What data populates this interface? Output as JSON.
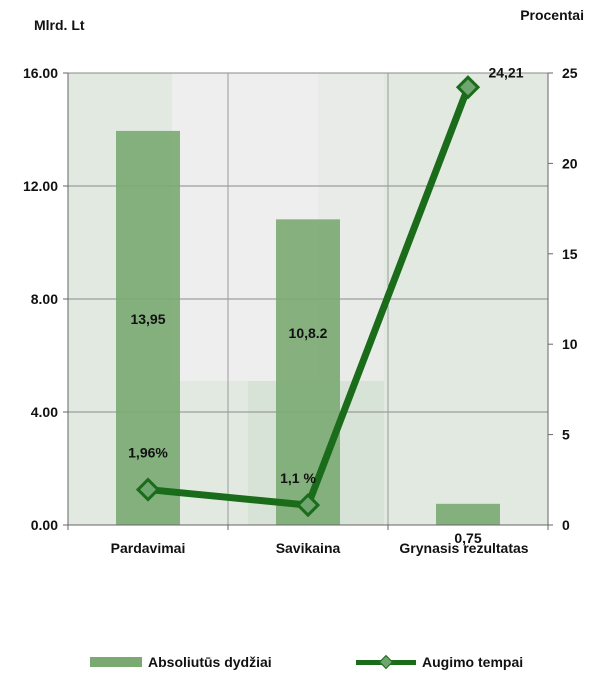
{
  "chart_data": {
    "type": "bar+line",
    "title": "",
    "left_axis_title": "Mlrd. Lt",
    "right_axis_title": "Procentai",
    "categories": [
      "Pardavimai",
      "Savikaina",
      "Grynasis rezultatas"
    ],
    "left_ylim": [
      0,
      16
    ],
    "left_ticks": [
      "0.00",
      "4.00",
      "8.00",
      "12.00",
      "16.00"
    ],
    "right_ylim": [
      0,
      25
    ],
    "right_ticks": [
      "0",
      "5",
      "10",
      "15",
      "20",
      "25"
    ],
    "series": [
      {
        "name": "Absoliutūs dydžiai",
        "type": "bar",
        "axis": "left",
        "values": [
          13.95,
          10.82,
          0.75
        ],
        "labels": [
          "13,95",
          "10,8.2",
          "0,75"
        ],
        "color": "#7aaa72"
      },
      {
        "name": "Augimo tempai",
        "type": "line",
        "axis": "right",
        "values": [
          1.96,
          1.1,
          24.21
        ],
        "labels": [
          "1,96%",
          "1,1 %",
          "24,21"
        ],
        "color": "#1a6b1a"
      }
    ],
    "legend_position": "bottom"
  }
}
